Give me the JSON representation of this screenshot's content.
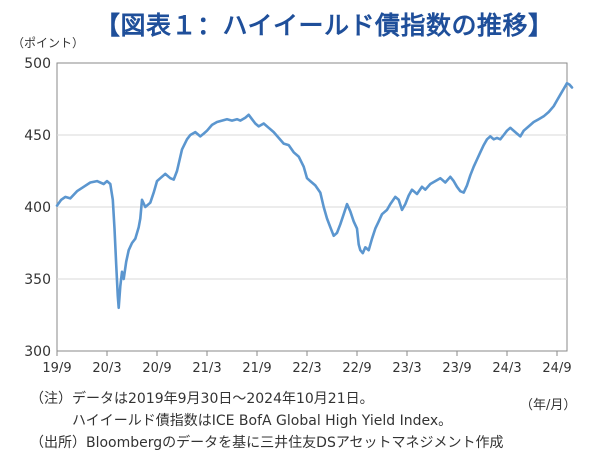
{
  "title": "【図表１：ハイイールド債指数の推移】",
  "notes": [
    "（注）データは2019年9月30日～2024年10月21日。",
    "　　　ハイイールド債指数はICE BofA Global High Yield Index。",
    "（出所）Bloombergのデータを基に三井住友DSアセットマネジメント作成"
  ],
  "chart_data": {
    "type": "line",
    "title": "【図表１：ハイイールド債指数の推移】",
    "ylabel": "（ポイント）",
    "xlabel": "（年/月）",
    "ylim": [
      300,
      500
    ],
    "yticks": [
      300,
      350,
      400,
      450,
      500
    ],
    "xticks": [
      "19/9",
      "20/3",
      "20/9",
      "21/3",
      "21/9",
      "22/3",
      "22/9",
      "23/3",
      "23/9",
      "24/3",
      "24/9"
    ],
    "grid": "horizontal",
    "line_color": "#5b96cf",
    "series": [
      {
        "name": "",
        "points": [
          [
            0,
            401
          ],
          [
            0.25,
            405
          ],
          [
            0.5,
            407
          ],
          [
            0.8,
            406
          ],
          [
            1.2,
            411
          ],
          [
            1.6,
            414
          ],
          [
            2.0,
            417
          ],
          [
            2.4,
            418
          ],
          [
            2.8,
            416
          ],
          [
            3.0,
            418
          ],
          [
            3.2,
            416
          ],
          [
            3.35,
            405
          ],
          [
            3.45,
            385
          ],
          [
            3.55,
            360
          ],
          [
            3.65,
            338
          ],
          [
            3.7,
            330
          ],
          [
            3.8,
            345
          ],
          [
            3.9,
            355
          ],
          [
            4.0,
            350
          ],
          [
            4.15,
            362
          ],
          [
            4.3,
            370
          ],
          [
            4.5,
            375
          ],
          [
            4.7,
            378
          ],
          [
            4.9,
            386
          ],
          [
            5.0,
            392
          ],
          [
            5.1,
            405
          ],
          [
            5.3,
            400
          ],
          [
            5.6,
            403
          ],
          [
            5.8,
            410
          ],
          [
            6.0,
            418
          ],
          [
            6.2,
            420
          ],
          [
            6.5,
            423
          ],
          [
            6.8,
            420
          ],
          [
            7.0,
            419
          ],
          [
            7.2,
            425
          ],
          [
            7.5,
            440
          ],
          [
            7.8,
            447
          ],
          [
            8.0,
            450
          ],
          [
            8.3,
            452
          ],
          [
            8.6,
            449
          ],
          [
            8.8,
            451
          ],
          [
            9.0,
            453
          ],
          [
            9.3,
            457
          ],
          [
            9.6,
            459
          ],
          [
            9.9,
            460
          ],
          [
            10.2,
            461
          ],
          [
            10.5,
            460
          ],
          [
            10.8,
            461
          ],
          [
            11.0,
            460
          ],
          [
            11.3,
            462
          ],
          [
            11.5,
            464
          ],
          [
            11.7,
            461
          ],
          [
            11.9,
            458
          ],
          [
            12.1,
            456
          ],
          [
            12.4,
            458
          ],
          [
            12.7,
            455
          ],
          [
            13.0,
            452
          ],
          [
            13.3,
            448
          ],
          [
            13.6,
            444
          ],
          [
            13.9,
            443
          ],
          [
            14.2,
            438
          ],
          [
            14.5,
            435
          ],
          [
            14.8,
            428
          ],
          [
            15.0,
            420
          ],
          [
            15.2,
            418
          ],
          [
            15.5,
            415
          ],
          [
            15.8,
            410
          ],
          [
            16.0,
            400
          ],
          [
            16.2,
            392
          ],
          [
            16.4,
            386
          ],
          [
            16.6,
            380
          ],
          [
            16.8,
            382
          ],
          [
            17.0,
            388
          ],
          [
            17.2,
            395
          ],
          [
            17.4,
            402
          ],
          [
            17.6,
            397
          ],
          [
            17.8,
            390
          ],
          [
            18.0,
            385
          ],
          [
            18.1,
            374
          ],
          [
            18.2,
            370
          ],
          [
            18.35,
            368
          ],
          [
            18.5,
            372
          ],
          [
            18.7,
            370
          ],
          [
            18.9,
            378
          ],
          [
            19.1,
            385
          ],
          [
            19.3,
            390
          ],
          [
            19.5,
            395
          ],
          [
            19.8,
            398
          ],
          [
            20.0,
            402
          ],
          [
            20.3,
            407
          ],
          [
            20.5,
            405
          ],
          [
            20.7,
            398
          ],
          [
            20.9,
            402
          ],
          [
            21.1,
            408
          ],
          [
            21.3,
            412
          ],
          [
            21.6,
            409
          ],
          [
            21.9,
            414
          ],
          [
            22.1,
            412
          ],
          [
            22.4,
            416
          ],
          [
            22.7,
            418
          ],
          [
            23.0,
            420
          ],
          [
            23.3,
            417
          ],
          [
            23.6,
            421
          ],
          [
            23.8,
            418
          ],
          [
            24.0,
            414
          ],
          [
            24.2,
            411
          ],
          [
            24.4,
            410
          ],
          [
            24.6,
            415
          ],
          [
            24.8,
            422
          ],
          [
            25.0,
            428
          ],
          [
            25.2,
            433
          ],
          [
            25.4,
            438
          ],
          [
            25.6,
            443
          ],
          [
            25.8,
            447
          ],
          [
            26.0,
            449
          ],
          [
            26.2,
            447
          ],
          [
            26.4,
            448
          ],
          [
            26.6,
            447
          ],
          [
            26.8,
            450
          ],
          [
            27.0,
            453
          ],
          [
            27.2,
            455
          ],
          [
            27.4,
            453
          ],
          [
            27.6,
            451
          ],
          [
            27.8,
            449
          ],
          [
            28.0,
            453
          ],
          [
            28.3,
            456
          ],
          [
            28.6,
            459
          ],
          [
            28.9,
            461
          ],
          [
            29.2,
            463
          ],
          [
            29.5,
            466
          ],
          [
            29.8,
            470
          ],
          [
            30.0,
            474
          ],
          [
            30.2,
            478
          ],
          [
            30.4,
            482
          ],
          [
            30.6,
            486
          ],
          [
            30.75,
            485
          ],
          [
            30.9,
            483
          ]
        ]
      }
    ]
  }
}
